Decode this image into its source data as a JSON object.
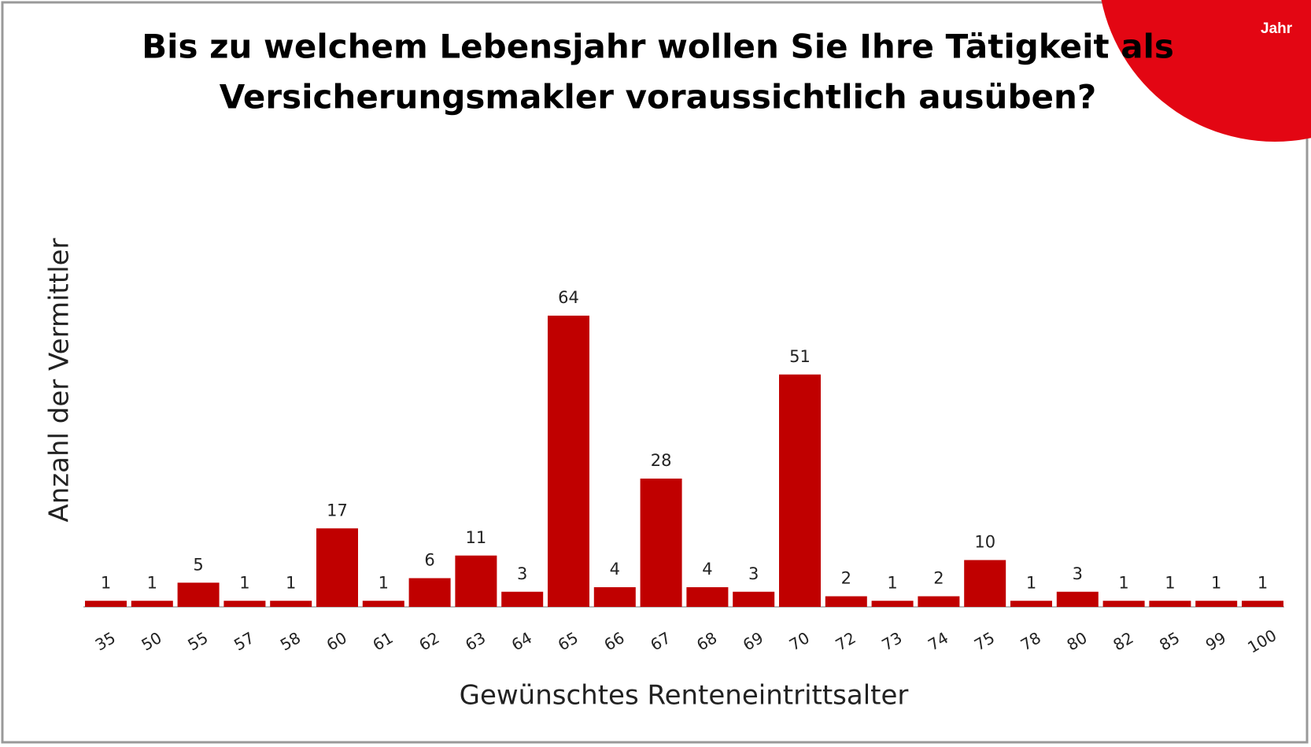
{
  "badge": "Jahr",
  "chart_data": {
    "type": "bar",
    "title": [
      "Bis zu welchem Lebensjahr wollen Sie Ihre Tätigkeit als",
      "Versicherungsmakler voraussichtlich ausüben?"
    ],
    "x_label": "Gewünschtes Renteneintrittsalter",
    "y_label": "Anzahl der Vermittler",
    "categories": [
      "35",
      "50",
      "55",
      "57",
      "58",
      "60",
      "61",
      "62",
      "63",
      "64",
      "65",
      "66",
      "67",
      "68",
      "69",
      "70",
      "72",
      "73",
      "74",
      "75",
      "78",
      "80",
      "82",
      "85",
      "99",
      "100"
    ],
    "values": [
      1,
      1,
      5,
      1,
      1,
      17,
      1,
      6,
      11,
      3,
      64,
      4,
      28,
      4,
      3,
      51,
      2,
      1,
      2,
      10,
      1,
      3,
      1,
      1,
      1,
      1
    ],
    "color": "#c00000"
  }
}
